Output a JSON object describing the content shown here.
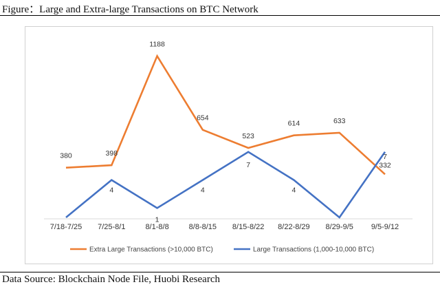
{
  "figure_title": "Figure：Large and Extra-large Transactions on BTC Network",
  "source": "Data Source: Blockchain Node File, Huobi Research",
  "chart_data": {
    "type": "line",
    "categories": [
      "7/18-7/25",
      "7/25-8/1",
      "8/1-8/8",
      "8/8-8/15",
      "8/15-8/22",
      "8/22-8/29",
      "8/29-9/5",
      "9/5-9/12"
    ],
    "series": [
      {
        "name": "Extra Large Transactions (>10,000 BTC)",
        "color": "#ed7d31",
        "values": [
          380,
          398,
          1188,
          654,
          523,
          614,
          633,
          332
        ],
        "labels": [
          "380",
          "398",
          "1188",
          "654",
          "523",
          "614",
          "633",
          "332"
        ]
      },
      {
        "name": "Large Transactions (1,000-10,000 BTC)",
        "color": "#4472c4",
        "values": [
          0,
          4,
          1,
          4,
          7,
          4,
          0,
          7
        ],
        "labels": [
          "",
          "4",
          "1",
          "4",
          "7",
          "4",
          "",
          "7"
        ]
      }
    ],
    "legend_position": "bottom",
    "grid": false
  }
}
